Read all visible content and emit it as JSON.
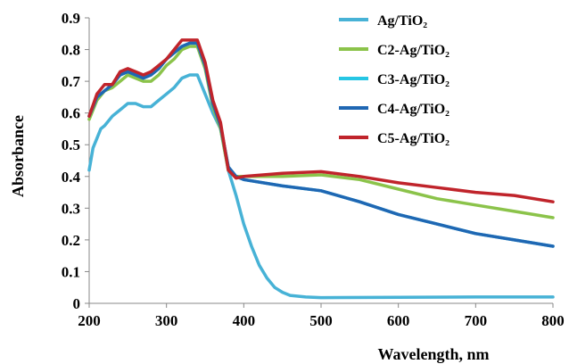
{
  "chart_data": {
    "type": "line",
    "xlabel": "Wavelength, nm",
    "ylabel": "Absorbance",
    "xlim": [
      200,
      800
    ],
    "ylim": [
      0,
      0.9
    ],
    "xticks": [
      "200",
      "300",
      "400",
      "500",
      "600",
      "700",
      "800"
    ],
    "yticks": [
      "0",
      "0.1",
      "0.2",
      "0.3",
      "0.4",
      "0.5",
      "0.6",
      "0.7",
      "0.8",
      "0.9"
    ],
    "grid": false,
    "legend_position": "top-right",
    "series": [
      {
        "name": "Ag/TiO₂",
        "color": "#47b2d6",
        "points": [
          [
            200,
            0.42
          ],
          [
            205,
            0.49
          ],
          [
            210,
            0.52
          ],
          [
            215,
            0.55
          ],
          [
            220,
            0.56
          ],
          [
            230,
            0.59
          ],
          [
            240,
            0.61
          ],
          [
            250,
            0.63
          ],
          [
            260,
            0.63
          ],
          [
            270,
            0.62
          ],
          [
            280,
            0.62
          ],
          [
            290,
            0.64
          ],
          [
            300,
            0.66
          ],
          [
            310,
            0.68
          ],
          [
            320,
            0.71
          ],
          [
            330,
            0.72
          ],
          [
            340,
            0.72
          ],
          [
            350,
            0.66
          ],
          [
            360,
            0.6
          ],
          [
            370,
            0.55
          ],
          [
            380,
            0.42
          ],
          [
            390,
            0.34
          ],
          [
            400,
            0.25
          ],
          [
            410,
            0.18
          ],
          [
            420,
            0.12
          ],
          [
            430,
            0.08
          ],
          [
            440,
            0.05
          ],
          [
            450,
            0.035
          ],
          [
            460,
            0.025
          ],
          [
            480,
            0.02
          ],
          [
            500,
            0.018
          ],
          [
            600,
            0.019
          ],
          [
            700,
            0.02
          ],
          [
            800,
            0.02
          ]
        ]
      },
      {
        "name": "C2-Ag/TiO₂",
        "color": "#8bc34a",
        "points": [
          [
            200,
            0.58
          ],
          [
            210,
            0.64
          ],
          [
            220,
            0.67
          ],
          [
            230,
            0.68
          ],
          [
            240,
            0.7
          ],
          [
            250,
            0.72
          ],
          [
            260,
            0.71
          ],
          [
            270,
            0.7
          ],
          [
            280,
            0.7
          ],
          [
            290,
            0.72
          ],
          [
            300,
            0.75
          ],
          [
            310,
            0.77
          ],
          [
            320,
            0.8
          ],
          [
            330,
            0.81
          ],
          [
            340,
            0.81
          ],
          [
            350,
            0.74
          ],
          [
            360,
            0.62
          ],
          [
            370,
            0.55
          ],
          [
            380,
            0.42
          ],
          [
            390,
            0.4
          ],
          [
            400,
            0.4
          ],
          [
            450,
            0.4
          ],
          [
            500,
            0.405
          ],
          [
            550,
            0.39
          ],
          [
            600,
            0.36
          ],
          [
            650,
            0.33
          ],
          [
            700,
            0.31
          ],
          [
            750,
            0.29
          ],
          [
            800,
            0.27
          ]
        ]
      },
      {
        "name": "C3-Ag/TiO₂",
        "color": "#26c6e4",
        "points": [
          [
            200,
            0.59
          ],
          [
            210,
            0.65
          ],
          [
            220,
            0.67
          ],
          [
            230,
            0.69
          ],
          [
            240,
            0.72
          ],
          [
            250,
            0.73
          ],
          [
            260,
            0.72
          ],
          [
            270,
            0.71
          ],
          [
            280,
            0.72
          ],
          [
            290,
            0.74
          ],
          [
            300,
            0.77
          ],
          [
            310,
            0.79
          ],
          [
            320,
            0.81
          ],
          [
            330,
            0.82
          ],
          [
            340,
            0.82
          ],
          [
            350,
            0.75
          ],
          [
            360,
            0.63
          ],
          [
            370,
            0.56
          ],
          [
            380,
            0.43
          ],
          [
            390,
            0.4
          ],
          [
            400,
            0.39
          ],
          [
            450,
            0.37
          ],
          [
            500,
            0.355
          ],
          [
            550,
            0.32
          ],
          [
            600,
            0.28
          ],
          [
            650,
            0.25
          ],
          [
            700,
            0.22
          ],
          [
            750,
            0.2
          ],
          [
            800,
            0.18
          ]
        ]
      },
      {
        "name": "C4-Ag/TiO₂",
        "color": "#1f67b3",
        "points": [
          [
            200,
            0.59
          ],
          [
            210,
            0.65
          ],
          [
            220,
            0.67
          ],
          [
            230,
            0.69
          ],
          [
            240,
            0.72
          ],
          [
            250,
            0.73
          ],
          [
            260,
            0.72
          ],
          [
            270,
            0.71
          ],
          [
            280,
            0.72
          ],
          [
            290,
            0.74
          ],
          [
            300,
            0.77
          ],
          [
            310,
            0.79
          ],
          [
            320,
            0.81
          ],
          [
            330,
            0.82
          ],
          [
            340,
            0.82
          ],
          [
            350,
            0.75
          ],
          [
            360,
            0.63
          ],
          [
            370,
            0.56
          ],
          [
            380,
            0.43
          ],
          [
            390,
            0.4
          ],
          [
            400,
            0.39
          ],
          [
            450,
            0.37
          ],
          [
            500,
            0.355
          ],
          [
            550,
            0.32
          ],
          [
            600,
            0.28
          ],
          [
            650,
            0.25
          ],
          [
            700,
            0.22
          ],
          [
            750,
            0.2
          ],
          [
            800,
            0.18
          ]
        ]
      },
      {
        "name": "C5-Ag/TiO₂",
        "color": "#c0242b",
        "points": [
          [
            200,
            0.59
          ],
          [
            210,
            0.66
          ],
          [
            220,
            0.69
          ],
          [
            230,
            0.69
          ],
          [
            240,
            0.73
          ],
          [
            250,
            0.74
          ],
          [
            260,
            0.73
          ],
          [
            270,
            0.72
          ],
          [
            280,
            0.73
          ],
          [
            290,
            0.75
          ],
          [
            300,
            0.77
          ],
          [
            310,
            0.8
          ],
          [
            320,
            0.83
          ],
          [
            330,
            0.83
          ],
          [
            340,
            0.83
          ],
          [
            350,
            0.76
          ],
          [
            360,
            0.64
          ],
          [
            370,
            0.57
          ],
          [
            380,
            0.42
          ],
          [
            390,
            0.395
          ],
          [
            400,
            0.4
          ],
          [
            450,
            0.41
          ],
          [
            500,
            0.415
          ],
          [
            550,
            0.4
          ],
          [
            600,
            0.38
          ],
          [
            650,
            0.365
          ],
          [
            700,
            0.35
          ],
          [
            750,
            0.34
          ],
          [
            800,
            0.32
          ]
        ]
      }
    ]
  }
}
